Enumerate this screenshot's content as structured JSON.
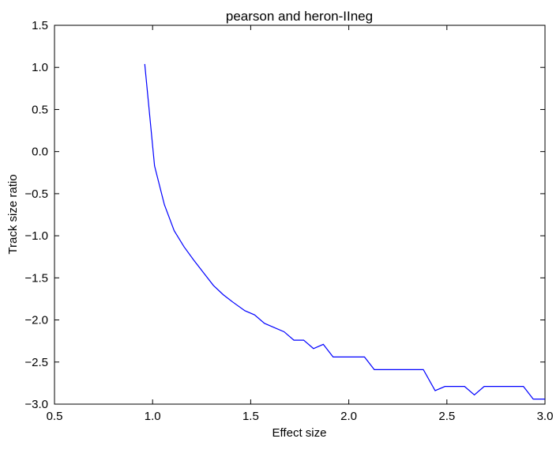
{
  "chart_data": {
    "type": "line",
    "title": "pearson and heron-IIneg",
    "xlabel": "Effect size",
    "ylabel": "Track size ratio",
    "xlim": [
      0.5,
      3.0
    ],
    "ylim": [
      -3.0,
      1.5
    ],
    "xticks": [
      0.5,
      1.0,
      1.5,
      2.0,
      2.5,
      3.0
    ],
    "xtick_labels": [
      "0.5",
      "1.0",
      "1.5",
      "2.0",
      "2.5",
      "3.0"
    ],
    "yticks": [
      1.5,
      1.0,
      0.5,
      0.0,
      -0.5,
      -1.0,
      -1.5,
      -2.0,
      -2.5,
      -3.0
    ],
    "ytick_labels": [
      "1.5",
      "1.0",
      "0.5",
      "0.0",
      "−0.5",
      "−1.0",
      "−1.5",
      "−2.0",
      "−2.5",
      "−3.0"
    ],
    "grid": false,
    "legend": null,
    "series": [
      {
        "color": "#0000ff",
        "x": [
          0.96,
          1.01,
          1.06,
          1.11,
          1.16,
          1.21,
          1.26,
          1.31,
          1.36,
          1.41,
          1.47,
          1.52,
          1.57,
          1.62,
          1.67,
          1.72,
          1.77,
          1.82,
          1.87,
          1.92,
          1.97,
          2.03,
          2.08,
          2.13,
          2.18,
          2.23,
          2.28,
          2.33,
          2.38,
          2.44,
          2.49,
          2.54,
          2.59,
          2.64,
          2.69,
          2.74,
          2.79,
          2.84,
          2.89,
          2.94,
          3.0
        ],
        "y": [
          1.04,
          -0.17,
          -0.63,
          -0.94,
          -1.13,
          -1.29,
          -1.44,
          -1.59,
          -1.7,
          -1.79,
          -1.89,
          -1.94,
          -2.04,
          -2.09,
          -2.14,
          -2.24,
          -2.24,
          -2.34,
          -2.29,
          -2.44,
          -2.44,
          -2.44,
          -2.44,
          -2.59,
          -2.59,
          -2.59,
          -2.59,
          -2.59,
          -2.59,
          -2.84,
          -2.79,
          -2.79,
          -2.79,
          -2.89,
          -2.79,
          -2.79,
          -2.79,
          -2.79,
          -2.79,
          -2.94,
          -2.94
        ]
      }
    ]
  }
}
